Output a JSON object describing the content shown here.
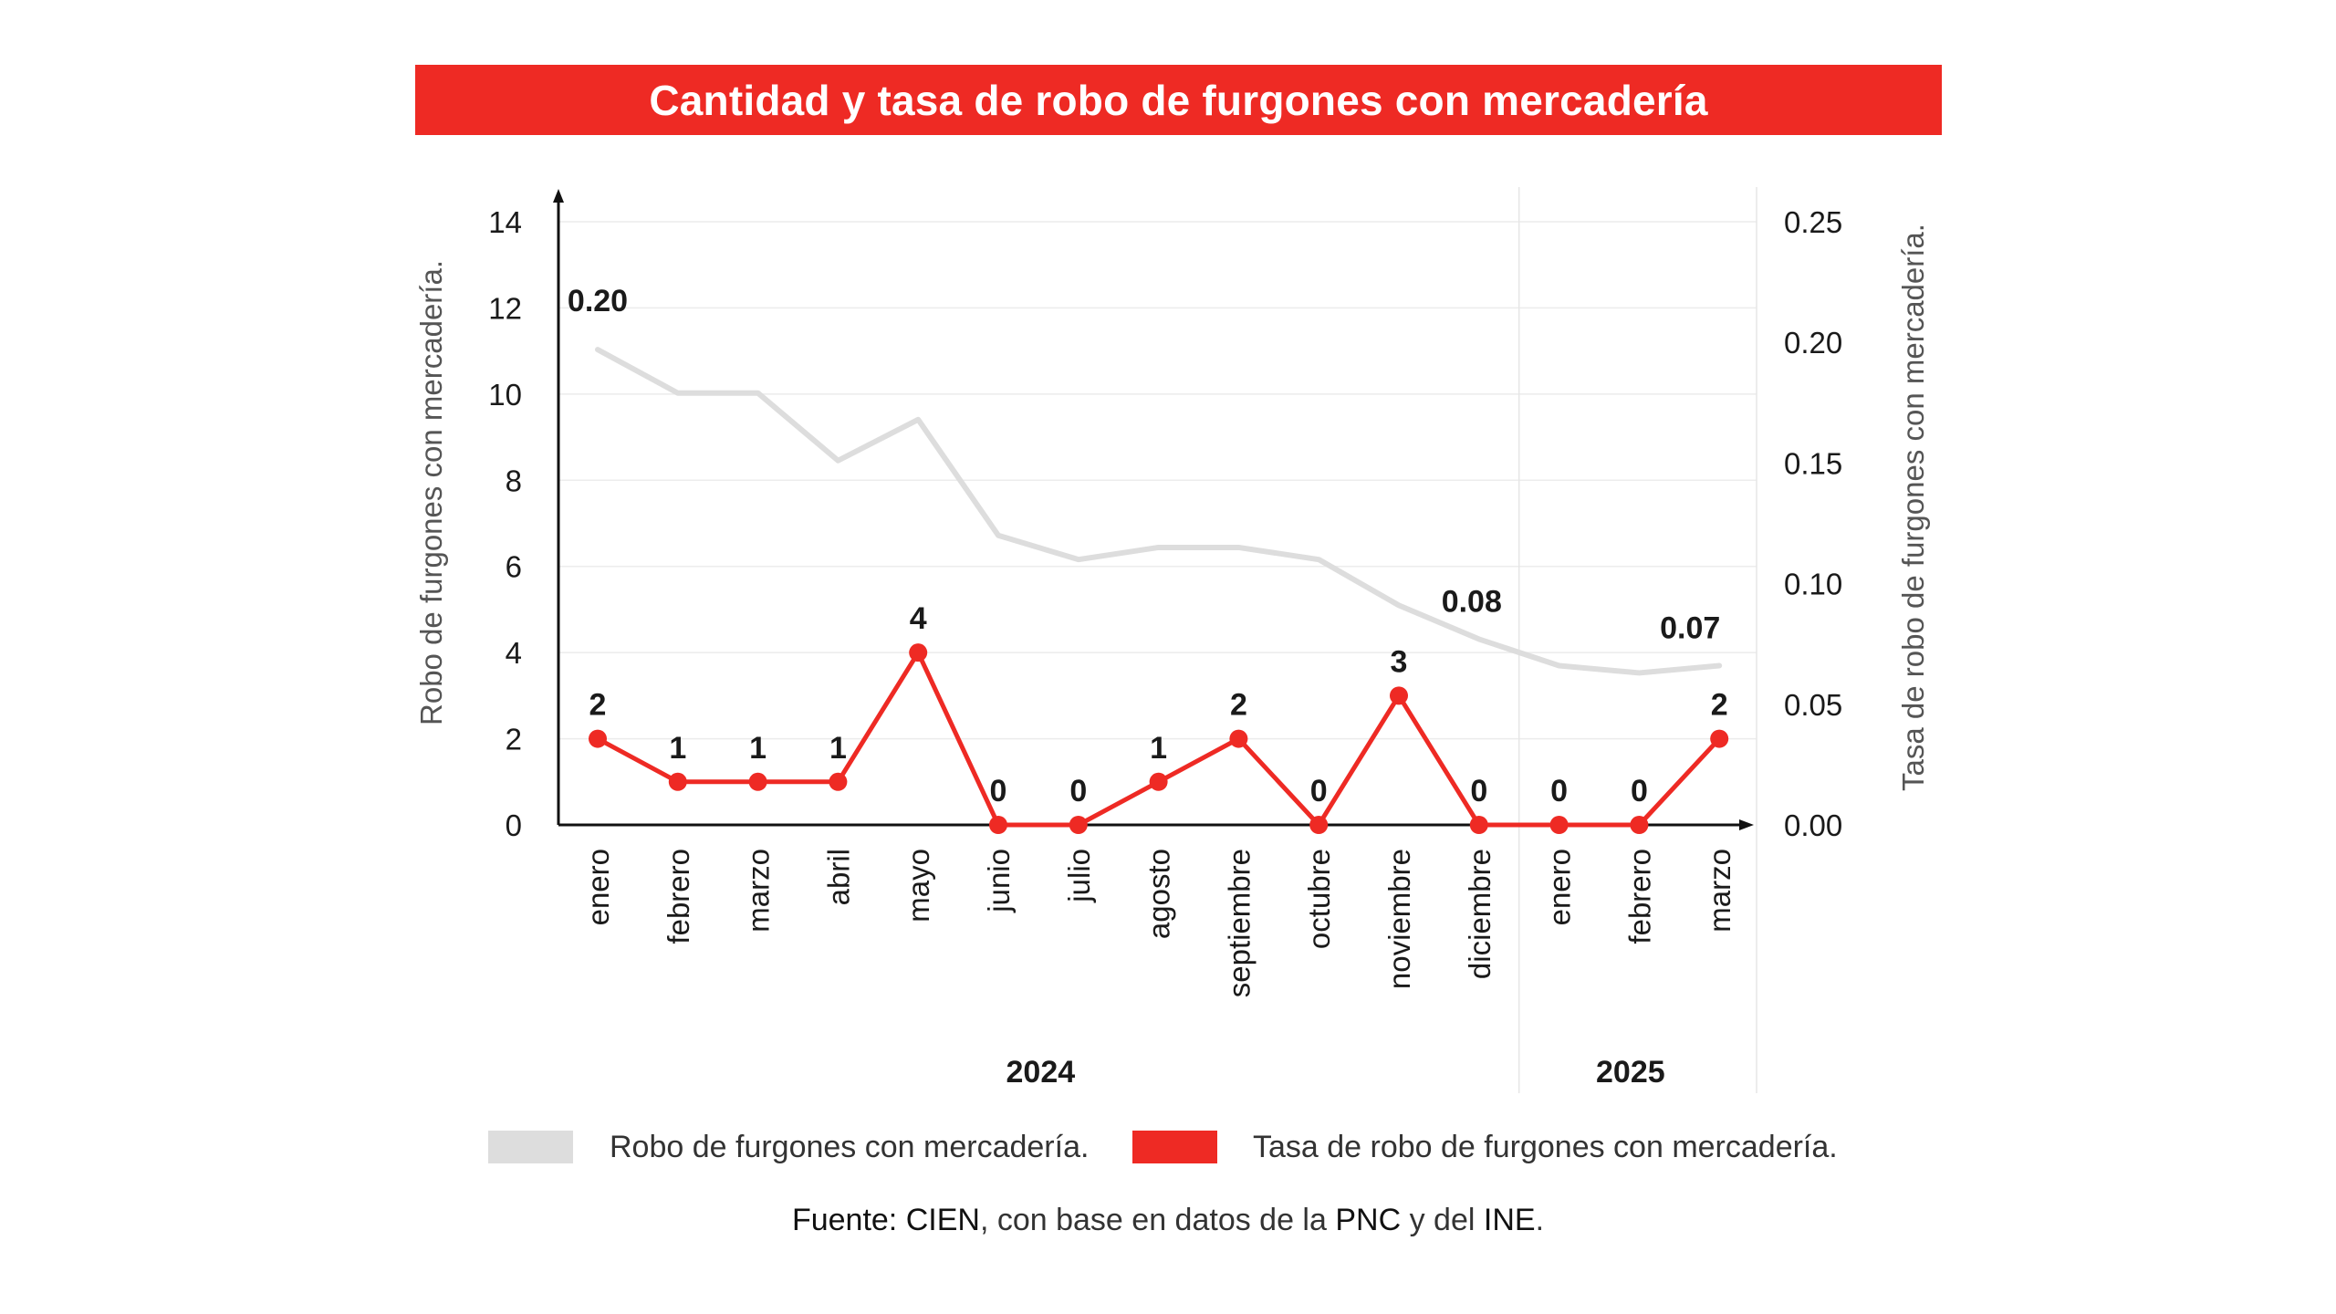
{
  "title": "Cantidad y tasa de robo de furgones con mercadería",
  "chart_data": {
    "type": "line",
    "title": "Cantidad y tasa de robo de furgones con mercadería",
    "categories": [
      "enero",
      "febrero",
      "marzo",
      "abril",
      "mayo",
      "junio",
      "julio",
      "agosto",
      "septiembre",
      "octubre",
      "noviembre",
      "diciembre",
      "enero",
      "febrero",
      "marzo"
    ],
    "years": [
      {
        "label": "2024",
        "months": 12
      },
      {
        "label": "2025",
        "months": 3
      }
    ],
    "ylabel": "Robo de furgones con mercadería.",
    "y2label": "Tasa de robo de furgones con mercadería.",
    "ylim": [
      0,
      14
    ],
    "y_ticks": [
      "0",
      "2",
      "4",
      "6",
      "8",
      "10",
      "12",
      "14"
    ],
    "y2lim": [
      0,
      0.25
    ],
    "y2_ticks": [
      "0.00",
      "0.05",
      "0.10",
      "0.15",
      "0.20",
      "0.25"
    ],
    "series": [
      {
        "name": "Robo de furgones con mercadería.",
        "color": "#dddddd",
        "axis": "right",
        "values": [
          0.197,
          0.179,
          0.179,
          0.151,
          0.168,
          0.12,
          0.11,
          0.115,
          0.115,
          0.11,
          0.091,
          0.077,
          0.066,
          0.063,
          0.066
        ],
        "labels": [
          {
            "index": 0,
            "text": "0.20"
          },
          {
            "index": 11,
            "text": "0.08"
          },
          {
            "index": 14,
            "text": "0.07"
          }
        ]
      },
      {
        "name": "Tasa de robo de furgones con mercadería.",
        "color": "#ee2a24",
        "axis": "left",
        "values": [
          2,
          1,
          1,
          1,
          4,
          0,
          0,
          1,
          2,
          0,
          3,
          0,
          0,
          0,
          2
        ],
        "labels": [
          "2",
          "1",
          "1",
          "1",
          "4",
          "0",
          "0",
          "1",
          "2",
          "0",
          "3",
          "0",
          "0",
          "0",
          "2"
        ]
      }
    ]
  },
  "legend": {
    "item1": "Robo de furgones con mercadería.",
    "item2": "Tasa de robo de furgones con mercadería.",
    "color1": "#dddddd",
    "color2": "#ee2a24"
  },
  "source": {
    "prefix": "Fuente:",
    "org": "CIEN",
    "middle": ", con base en datos de la",
    "pnc": "PNC",
    "and": "y del",
    "ine": "INE",
    "end": "."
  }
}
